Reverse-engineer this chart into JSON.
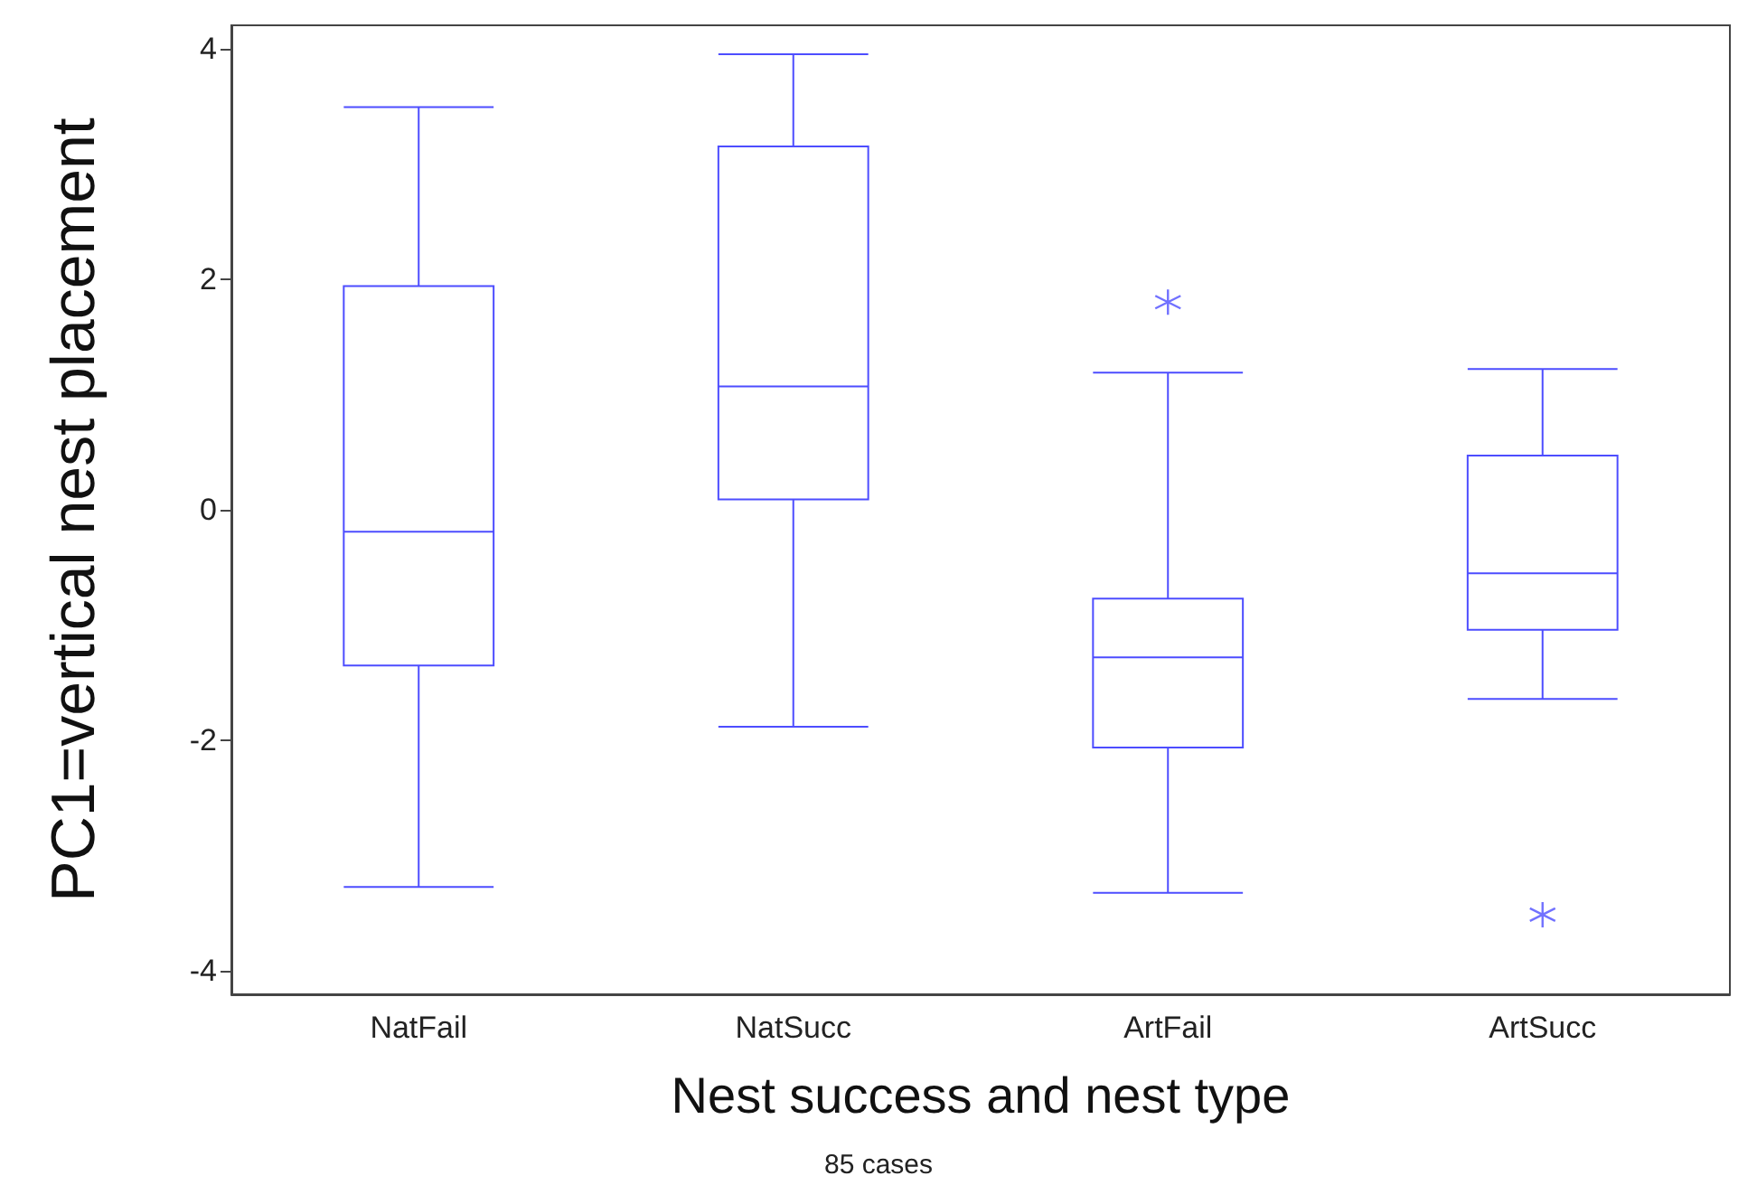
{
  "chart_data": {
    "type": "box",
    "xlabel": "Nest success and nest type",
    "ylabel": "PC1=vertical nest placement",
    "annotations": [
      "85 cases"
    ],
    "categories": [
      "NatFail",
      "NatSucc",
      "ArtFail",
      "ArtSucc"
    ],
    "series": [
      {
        "color": "#4d4dff",
        "boxes": [
          {
            "low": -3.27,
            "q1": -1.35,
            "median": -0.19,
            "q3": 1.94,
            "high": 3.49
          },
          {
            "low": -1.88,
            "q1": 0.09,
            "median": 1.07,
            "q3": 3.15,
            "high": 3.95
          },
          {
            "low": -3.32,
            "q1": -2.06,
            "median": -1.28,
            "q3": -0.77,
            "high": 1.19,
            "outliers": [
              1.8
            ]
          },
          {
            "low": -1.64,
            "q1": -1.04,
            "median": -0.55,
            "q3": 0.47,
            "high": 1.22,
            "outliers": [
              -3.51
            ]
          }
        ]
      }
    ],
    "marker": "cross",
    "ylim": [
      -4.2,
      4.2
    ],
    "yticks": [
      -4,
      -2,
      0,
      2,
      4
    ],
    "grid": false
  }
}
